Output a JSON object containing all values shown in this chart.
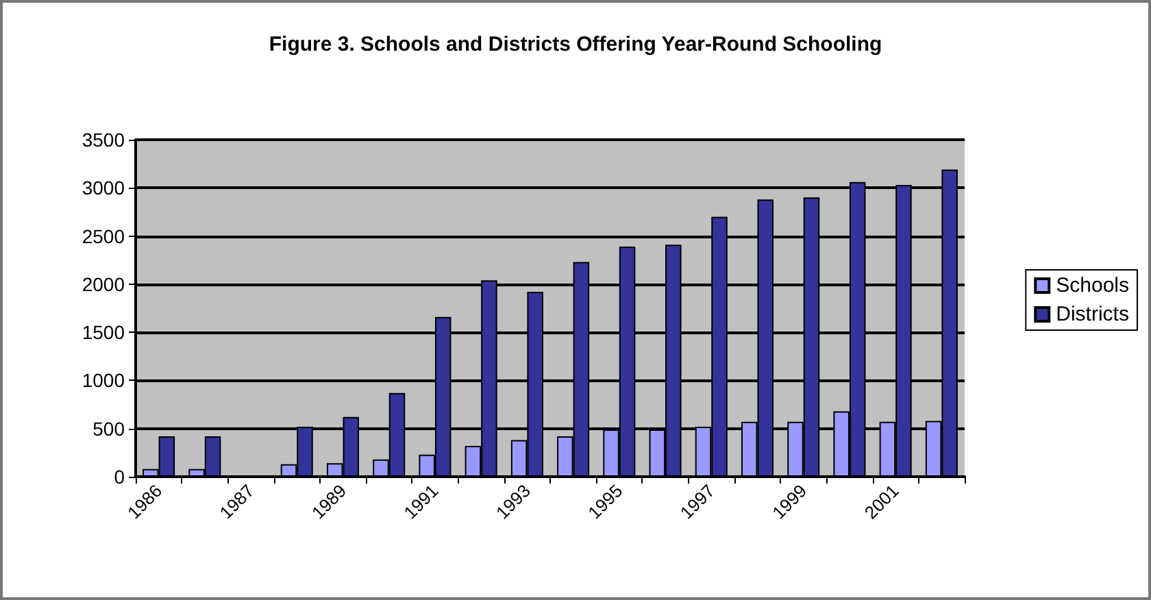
{
  "chart_data": {
    "type": "bar",
    "title": "Figure 3. Schools and Districts Offering Year-Round Schooling",
    "categories": [
      "1986",
      null,
      "1987",
      null,
      "1989",
      null,
      "1991",
      null,
      "1993",
      null,
      "1995",
      null,
      "1997",
      null,
      "1999",
      null,
      "2001",
      null
    ],
    "series": [
      {
        "name": "Schools",
        "color": "#9999ff",
        "values": [
          80,
          80,
          null,
          130,
          140,
          180,
          230,
          320,
          380,
          420,
          490,
          490,
          520,
          570,
          570,
          680,
          570,
          580
        ]
      },
      {
        "name": "Districts",
        "color": "#333399",
        "values": [
          420,
          420,
          null,
          520,
          620,
          870,
          1660,
          2040,
          1920,
          2230,
          2390,
          2410,
          2700,
          2880,
          2900,
          3060,
          3030,
          3190
        ]
      }
    ],
    "ylim": [
      0,
      3500
    ],
    "yticks": [
      0,
      500,
      1000,
      1500,
      2000,
      2500,
      3000,
      3500
    ],
    "grid": "y",
    "legend": "right"
  }
}
